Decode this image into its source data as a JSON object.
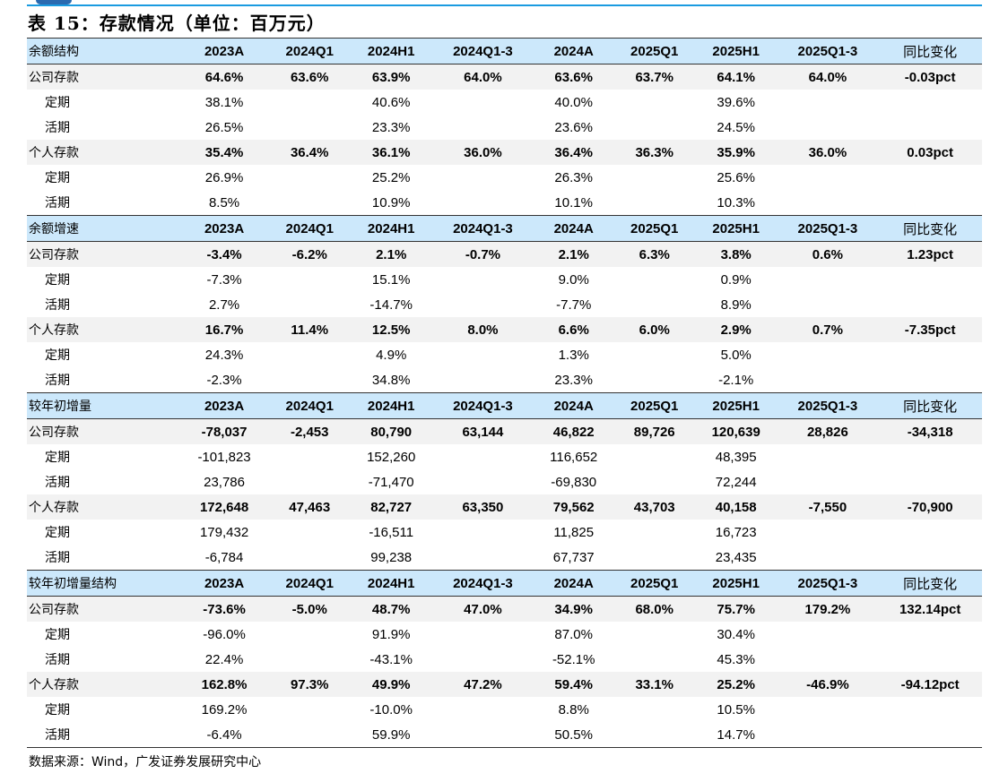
{
  "title": "表 15：存款情况（单位：百万元）",
  "columns": [
    "2023A",
    "2024Q1",
    "2024H1",
    "2024Q1-3",
    "2024A",
    "2025Q1",
    "2025H1",
    "2025Q1-3",
    "同比变化"
  ],
  "sections": [
    {
      "header": "余额结构",
      "rows": [
        {
          "label": "公司存款",
          "type": "main",
          "values": [
            "64.6%",
            "63.6%",
            "63.9%",
            "64.0%",
            "63.6%",
            "63.7%",
            "64.1%",
            "64.0%",
            "-0.03pct"
          ]
        },
        {
          "label": "定期",
          "type": "sub",
          "values": [
            "38.1%",
            "",
            "40.6%",
            "",
            "40.0%",
            "",
            "39.6%",
            "",
            ""
          ]
        },
        {
          "label": "活期",
          "type": "sub",
          "values": [
            "26.5%",
            "",
            "23.3%",
            "",
            "23.6%",
            "",
            "24.5%",
            "",
            ""
          ]
        },
        {
          "label": "个人存款",
          "type": "main",
          "values": [
            "35.4%",
            "36.4%",
            "36.1%",
            "36.0%",
            "36.4%",
            "36.3%",
            "35.9%",
            "36.0%",
            "0.03pct"
          ]
        },
        {
          "label": "定期",
          "type": "sub",
          "values": [
            "26.9%",
            "",
            "25.2%",
            "",
            "26.3%",
            "",
            "25.6%",
            "",
            ""
          ]
        },
        {
          "label": "活期",
          "type": "sub",
          "values": [
            "8.5%",
            "",
            "10.9%",
            "",
            "10.1%",
            "",
            "10.3%",
            "",
            ""
          ]
        }
      ]
    },
    {
      "header": "余额增速",
      "rows": [
        {
          "label": "公司存款",
          "type": "main",
          "values": [
            "-3.4%",
            "-6.2%",
            "2.1%",
            "-0.7%",
            "2.1%",
            "6.3%",
            "3.8%",
            "0.6%",
            "1.23pct"
          ]
        },
        {
          "label": "定期",
          "type": "sub",
          "values": [
            "-7.3%",
            "",
            "15.1%",
            "",
            "9.0%",
            "",
            "0.9%",
            "",
            ""
          ]
        },
        {
          "label": "活期",
          "type": "sub",
          "values": [
            "2.7%",
            "",
            "-14.7%",
            "",
            "-7.7%",
            "",
            "8.9%",
            "",
            ""
          ]
        },
        {
          "label": "个人存款",
          "type": "main",
          "values": [
            "16.7%",
            "11.4%",
            "12.5%",
            "8.0%",
            "6.6%",
            "6.0%",
            "2.9%",
            "0.7%",
            "-7.35pct"
          ]
        },
        {
          "label": "定期",
          "type": "sub",
          "values": [
            "24.3%",
            "",
            "4.9%",
            "",
            "1.3%",
            "",
            "5.0%",
            "",
            ""
          ]
        },
        {
          "label": "活期",
          "type": "sub",
          "values": [
            "-2.3%",
            "",
            "34.8%",
            "",
            "23.3%",
            "",
            "-2.1%",
            "",
            ""
          ]
        }
      ]
    },
    {
      "header": "较年初增量",
      "rows": [
        {
          "label": "公司存款",
          "type": "main",
          "values": [
            "-78,037",
            "-2,453",
            "80,790",
            "63,144",
            "46,822",
            "89,726",
            "120,639",
            "28,826",
            "-34,318"
          ]
        },
        {
          "label": "定期",
          "type": "sub",
          "values": [
            "-101,823",
            "",
            "152,260",
            "",
            "116,652",
            "",
            "48,395",
            "",
            ""
          ]
        },
        {
          "label": "活期",
          "type": "sub",
          "values": [
            "23,786",
            "",
            "-71,470",
            "",
            "-69,830",
            "",
            "72,244",
            "",
            ""
          ]
        },
        {
          "label": "个人存款",
          "type": "main",
          "values": [
            "172,648",
            "47,463",
            "82,727",
            "63,350",
            "79,562",
            "43,703",
            "40,158",
            "-7,550",
            "-70,900"
          ]
        },
        {
          "label": "定期",
          "type": "sub",
          "values": [
            "179,432",
            "",
            "-16,511",
            "",
            "11,825",
            "",
            "16,723",
            "",
            ""
          ]
        },
        {
          "label": "活期",
          "type": "sub",
          "values": [
            "-6,784",
            "",
            "99,238",
            "",
            "67,737",
            "",
            "23,435",
            "",
            ""
          ]
        }
      ]
    },
    {
      "header": "较年初增量结构",
      "rows": [
        {
          "label": "公司存款",
          "type": "main",
          "values": [
            "-73.6%",
            "-5.0%",
            "48.7%",
            "47.0%",
            "34.9%",
            "68.0%",
            "75.7%",
            "179.2%",
            "132.14pct"
          ]
        },
        {
          "label": "定期",
          "type": "sub",
          "values": [
            "-96.0%",
            "",
            "91.9%",
            "",
            "87.0%",
            "",
            "30.4%",
            "",
            ""
          ]
        },
        {
          "label": "活期",
          "type": "sub",
          "values": [
            "22.4%",
            "",
            "-43.1%",
            "",
            "-52.1%",
            "",
            "45.3%",
            "",
            ""
          ]
        },
        {
          "label": "个人存款",
          "type": "main",
          "values": [
            "162.8%",
            "97.3%",
            "49.9%",
            "47.2%",
            "59.4%",
            "33.1%",
            "25.2%",
            "-46.9%",
            "-94.12pct"
          ]
        },
        {
          "label": "定期",
          "type": "sub",
          "values": [
            "169.2%",
            "",
            "-10.0%",
            "",
            "8.8%",
            "",
            "10.5%",
            "",
            ""
          ]
        },
        {
          "label": "活期",
          "type": "sub",
          "values": [
            "-6.4%",
            "",
            "59.9%",
            "",
            "50.5%",
            "",
            "14.7%",
            "",
            ""
          ]
        }
      ]
    }
  ],
  "source": "数据来源：Wind，广发证券发展研究中心",
  "colors": {
    "header_bg": "#cce8fb",
    "main_row_bg": "#f2f2f2",
    "top_line": "#1a9be0"
  }
}
